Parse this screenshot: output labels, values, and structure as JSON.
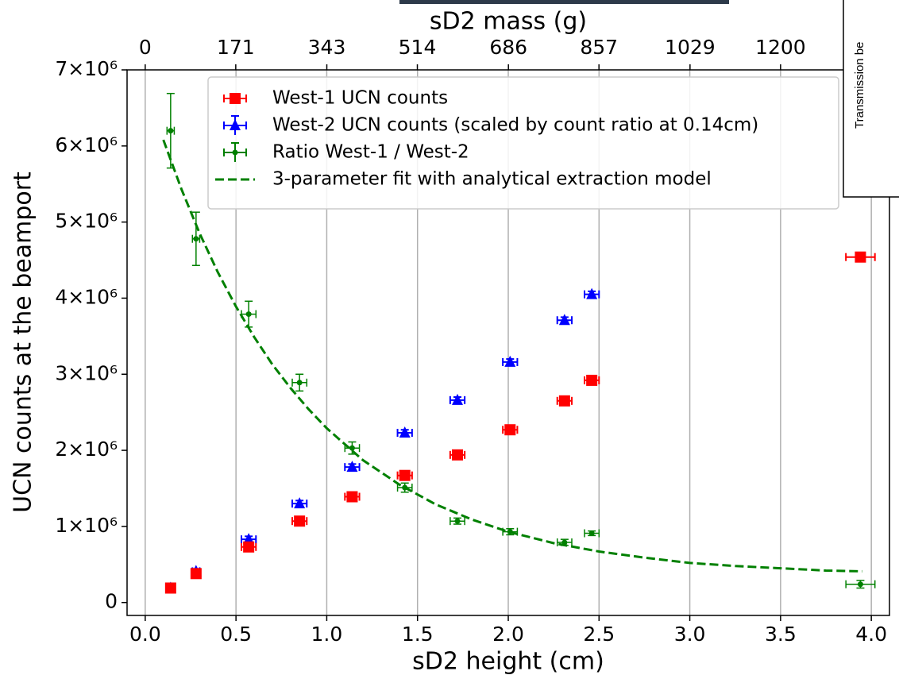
{
  "chart_data": {
    "type": "scatter",
    "x_label": "sD2 height (cm)",
    "x2_label": "sD2 mass (g)",
    "y_label": "UCN counts at the beamport",
    "xlim": [
      -0.1,
      4.1
    ],
    "xticks": [
      {
        "value": 0,
        "label": "0.0"
      },
      0.5,
      {
        "value": 1,
        "label": "1.0"
      },
      1.5,
      {
        "value": 2,
        "label": "2.0"
      },
      2.5,
      {
        "value": 3,
        "label": "3.0"
      },
      3.5,
      {
        "value": 4,
        "label": "4.0"
      }
    ],
    "x2lim": [
      -34.29,
      1405.71
    ],
    "x2ticks": [
      0,
      171,
      343,
      514,
      686,
      857,
      1029,
      1200
    ],
    "ylim": [
      -170000,
      7000000
    ],
    "yticks": [
      0,
      {
        "value": 1000000,
        "label": "1×10⁶"
      },
      {
        "value": 2000000,
        "label": "2×10⁶"
      },
      {
        "value": 3000000,
        "label": "3×10⁶"
      },
      {
        "value": 4000000,
        "label": "4×10⁶"
      },
      {
        "value": 5000000,
        "label": "5×10⁶"
      },
      {
        "value": 6000000,
        "label": "6×10⁶"
      },
      {
        "value": 7000000,
        "label": "7×10⁶"
      }
    ],
    "grid": "x",
    "legend": "upper center",
    "annotations": [
      "Transmission be"
    ],
    "series": [
      {
        "name": "West-1 UCN counts",
        "color": "#ff0000",
        "marker": "square",
        "x": [
          0.14,
          0.28,
          0.57,
          0.85,
          1.14,
          1.43,
          1.72,
          2.01,
          2.31,
          2.46,
          3.94
        ],
        "values": [
          190000,
          380000,
          730000,
          1070000,
          1390000,
          1670000,
          1940000,
          2270000,
          2650000,
          2920000,
          4540000
        ],
        "xerr": [
          0.02,
          0.02,
          0.04,
          0.04,
          0.04,
          0.04,
          0.04,
          0.04,
          0.04,
          0.04,
          0.08
        ]
      },
      {
        "name": "West-2 UCN counts (scaled by count ratio at 0.14cm)",
        "color": "#0000ff",
        "marker": "triangle",
        "x": [
          0.14,
          0.28,
          0.57,
          0.85,
          1.14,
          1.43,
          1.72,
          2.01,
          2.31,
          2.46
        ],
        "values": [
          190000,
          410000,
          830000,
          1300000,
          1780000,
          2230000,
          2660000,
          3160000,
          3710000,
          4050000
        ],
        "xerr": [
          0.02,
          0.02,
          0.04,
          0.04,
          0.04,
          0.04,
          0.04,
          0.04,
          0.04,
          0.04
        ],
        "yerr": [
          20000,
          30000,
          40000,
          40000,
          40000,
          40000,
          40000,
          40000,
          40000,
          40000
        ]
      },
      {
        "name": "Ratio West-1 / West-2",
        "color": "#008000",
        "marker": "circle",
        "x": [
          0.14,
          0.28,
          0.57,
          0.85,
          1.14,
          1.43,
          1.72,
          2.01,
          2.31,
          2.46,
          3.94
        ],
        "values": [
          6200000,
          4780000,
          3790000,
          2890000,
          2030000,
          1510000,
          1070000,
          930000,
          790000,
          910000,
          240000
        ],
        "xerr": [
          0.02,
          0.02,
          0.04,
          0.04,
          0.04,
          0.04,
          0.04,
          0.04,
          0.04,
          0.04,
          0.08
        ],
        "yerr": [
          490000,
          350000,
          170000,
          110000,
          80000,
          60000,
          40000,
          40000,
          40000,
          30000,
          50000
        ]
      },
      {
        "name": "3-parameter fit with analytical extraction model",
        "color": "#008000",
        "marker": "none",
        "style": "dashed",
        "x": [
          0.1,
          0.2,
          0.3,
          0.4,
          0.5,
          0.6,
          0.7,
          0.8,
          0.9,
          1.0,
          1.2,
          1.4,
          1.6,
          1.8,
          2.0,
          2.25,
          2.5,
          2.75,
          3.0,
          3.25,
          3.5,
          3.75,
          3.95
        ],
        "values": [
          6080000,
          5430000,
          4850000,
          4340000,
          3890000,
          3490000,
          3130000,
          2820000,
          2540000,
          2290000,
          1870000,
          1550000,
          1290000,
          1090000,
          930000,
          780000,
          670000,
          590000,
          520000,
          480000,
          450000,
          420000,
          410000
        ]
      }
    ]
  }
}
